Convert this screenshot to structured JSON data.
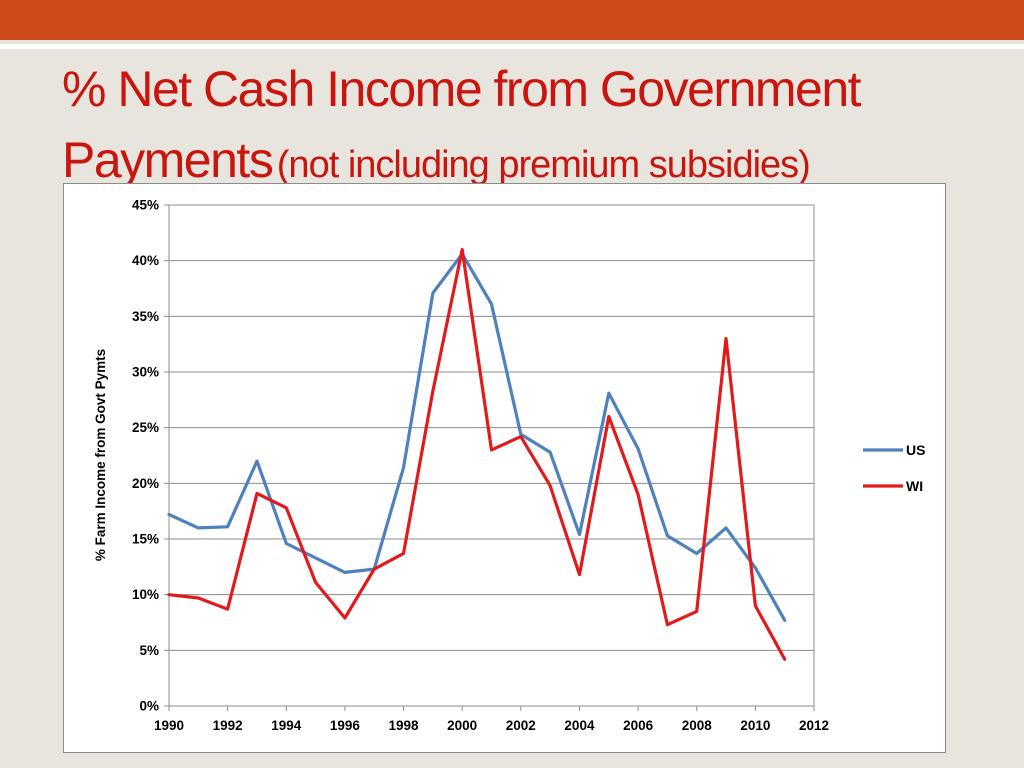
{
  "slide": {
    "title_main": "% Net Cash Income from Government Payments",
    "title_sub": "(not including premium subsidies)",
    "accent_color": "#d04a1c",
    "title_color": "#c8150e"
  },
  "chart_data": {
    "type": "line",
    "title": "",
    "xlabel": "",
    "ylabel": "% Farm Income from Govt Pymts",
    "x": [
      1990,
      1991,
      1992,
      1993,
      1994,
      1995,
      1996,
      1997,
      1998,
      1999,
      2000,
      2001,
      2002,
      2003,
      2004,
      2005,
      2006,
      2007,
      2008,
      2009,
      2010,
      2011
    ],
    "xlim": [
      1990,
      2012
    ],
    "x_ticks": [
      "1990",
      "1992",
      "1994",
      "1996",
      "1998",
      "2000",
      "2002",
      "2004",
      "2006",
      "2008",
      "2010",
      "2012"
    ],
    "x_tick_values": [
      1990,
      1992,
      1994,
      1996,
      1998,
      2000,
      2002,
      2004,
      2006,
      2008,
      2010,
      2012
    ],
    "ylim": [
      0,
      45
    ],
    "y_ticks": [
      "0%",
      "5%",
      "10%",
      "15%",
      "20%",
      "25%",
      "30%",
      "35%",
      "40%",
      "45%"
    ],
    "y_tick_values": [
      0,
      5,
      10,
      15,
      20,
      25,
      30,
      35,
      40,
      45
    ],
    "grid": true,
    "legend_position": "right",
    "series": [
      {
        "name": "US",
        "color": "#4f81bd",
        "values": [
          17.2,
          16.0,
          16.1,
          22.0,
          14.6,
          13.3,
          12.0,
          12.3,
          21.4,
          37.1,
          40.6,
          36.1,
          24.4,
          22.8,
          15.4,
          28.1,
          23.1,
          15.3,
          13.7,
          16.0,
          12.4,
          7.7
        ]
      },
      {
        "name": "WI",
        "color": "#e31a1c",
        "values": [
          10.0,
          9.7,
          8.7,
          19.1,
          17.8,
          11.1,
          7.9,
          12.3,
          13.7,
          28.3,
          41.0,
          23.0,
          24.2,
          19.8,
          11.8,
          26.0,
          19.0,
          7.3,
          8.5,
          33.0,
          9.0,
          4.2
        ]
      }
    ]
  }
}
